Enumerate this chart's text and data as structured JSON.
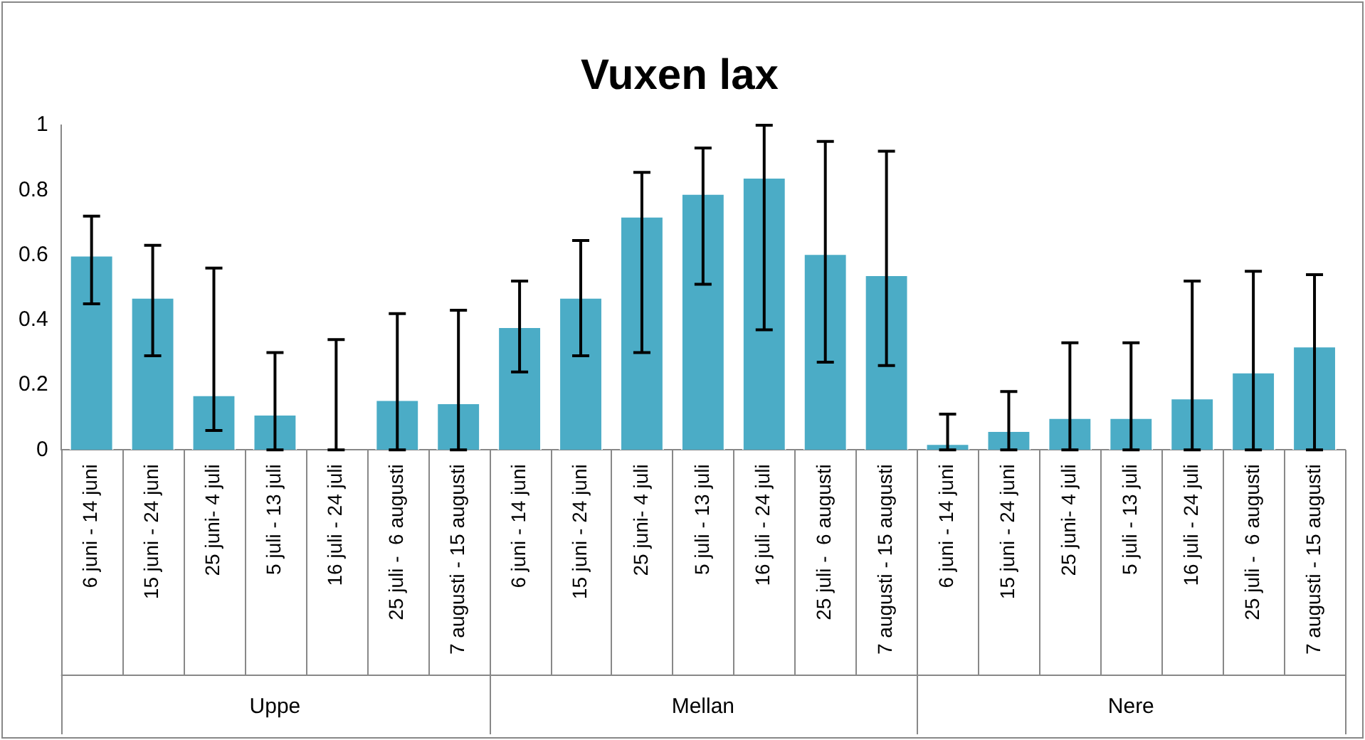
{
  "chart_data": {
    "type": "bar",
    "title": "Vuxen lax",
    "categories": [
      "6 juni - 14 juni",
      "15 juni - 24 juni",
      "25 juni- 4 juli",
      "5 juli - 13 juli",
      "16 juli - 24 juli",
      "25 juli -  6 augusti",
      "7 augusti - 15 augusti",
      "6 juni - 14 juni",
      "15 juni - 24 juni",
      "25 juni- 4 juli",
      "5 juli - 13 juli",
      "16 juli - 24 juli",
      "25 juli -  6 augusti",
      "7 augusti - 15 augusti",
      "6 juni - 14 juni",
      "15 juni - 24 juni",
      "25 juni- 4 juli",
      "5 juli - 13 juli",
      "16 juli - 24 juli",
      "25 juli -  6 augusti",
      "7 augusti - 15 augusti"
    ],
    "values": [
      0.6,
      0.47,
      0.17,
      0.11,
      0,
      0.155,
      0.145,
      0.38,
      0.47,
      0.72,
      0.79,
      0.84,
      0.605,
      0.54,
      0.02,
      0.06,
      0.1,
      0.1,
      0.16,
      0.24,
      0.32
    ],
    "errors": [
      [
        0.45,
        0.72
      ],
      [
        0.29,
        0.63
      ],
      [
        0.06,
        0.56
      ],
      [
        0,
        0.3
      ],
      [
        0,
        0.34
      ],
      [
        0,
        0.42
      ],
      [
        0,
        0.43
      ],
      [
        0.24,
        0.52
      ],
      [
        0.29,
        0.645
      ],
      [
        0.3,
        0.855
      ],
      [
        0.51,
        0.93
      ],
      [
        0.37,
        1
      ],
      [
        0.27,
        0.95
      ],
      [
        0.26,
        0.92
      ],
      [
        0,
        0.11
      ],
      [
        0,
        0.18
      ],
      [
        0,
        0.33
      ],
      [
        0,
        0.33
      ],
      [
        0,
        0.52
      ],
      [
        0,
        0.55
      ],
      [
        0,
        0.54
      ]
    ],
    "color": "#4bacc6",
    "ylim": [
      0,
      1
    ],
    "yticks": [
      0,
      0.2,
      0.4,
      0.6,
      0.8,
      1
    ],
    "annotations": [
      "Uppe",
      "Mellan",
      "Nere"
    ],
    "grid": false,
    "legend": false
  }
}
